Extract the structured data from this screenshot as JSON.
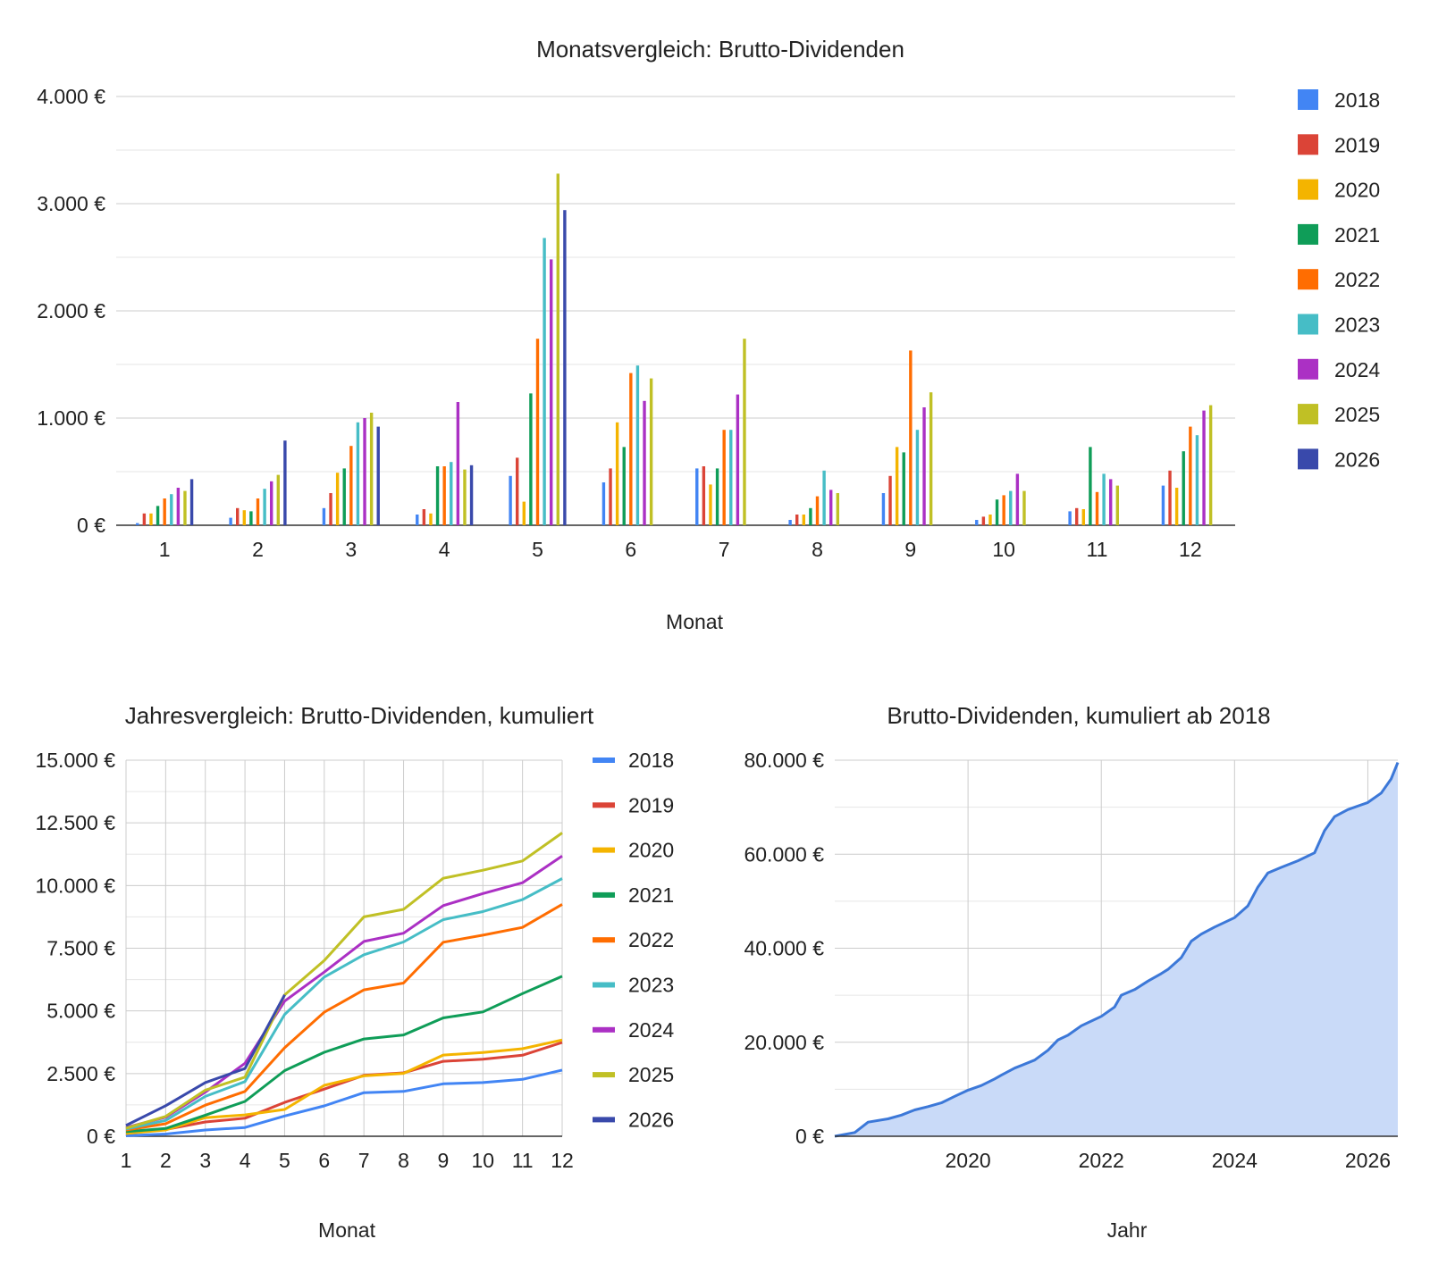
{
  "colors": {
    "2018": "#4285F4",
    "2019": "#DB4437",
    "2020": "#F4B400",
    "2021": "#0F9D58",
    "2022": "#FF6D01",
    "2023": "#46BDC6",
    "2024": "#AB30C4",
    "2025": "#C0C025",
    "2026": "#3949AB",
    "area_line": "#3C78D8",
    "area_fill": "#C9DAF8"
  },
  "chart_data": [
    {
      "type": "bar",
      "title": "Monatsvergleich: Brutto-Dividenden",
      "xlabel": "Monat",
      "ylabel": "",
      "ylim": [
        0,
        4000
      ],
      "y_ticks": [
        0,
        1000,
        2000,
        3000,
        4000
      ],
      "y_tick_labels": [
        "0 €",
        "1.000 €",
        "2.000 €",
        "3.000 €",
        "4.000 €"
      ],
      "categories": [
        "1",
        "2",
        "3",
        "4",
        "5",
        "6",
        "7",
        "8",
        "9",
        "10",
        "11",
        "12"
      ],
      "legend_position": "right",
      "grid": true,
      "series": [
        {
          "name": "2018",
          "values": [
            20,
            70,
            160,
            100,
            460,
            400,
            530,
            50,
            300,
            50,
            130,
            370
          ]
        },
        {
          "name": "2019",
          "values": [
            110,
            160,
            300,
            150,
            630,
            530,
            550,
            100,
            460,
            80,
            160,
            510
          ]
        },
        {
          "name": "2020",
          "values": [
            110,
            140,
            490,
            110,
            220,
            960,
            380,
            100,
            730,
            100,
            150,
            350
          ]
        },
        {
          "name": "2021",
          "values": [
            180,
            130,
            530,
            550,
            1230,
            730,
            530,
            160,
            680,
            240,
            730,
            690
          ]
        },
        {
          "name": "2022",
          "values": [
            250,
            250,
            740,
            550,
            1740,
            1420,
            890,
            270,
            1630,
            280,
            310,
            920
          ]
        },
        {
          "name": "2023",
          "values": [
            290,
            340,
            960,
            590,
            2680,
            1490,
            890,
            510,
            890,
            320,
            480,
            840
          ]
        },
        {
          "name": "2024",
          "values": [
            350,
            410,
            1000,
            1150,
            2480,
            1160,
            1220,
            330,
            1100,
            480,
            430,
            1070
          ]
        },
        {
          "name": "2025",
          "values": [
            320,
            470,
            1050,
            520,
            3280,
            1370,
            1740,
            300,
            1240,
            320,
            370,
            1120
          ]
        },
        {
          "name": "2026",
          "values": [
            430,
            790,
            920,
            560,
            2940,
            null,
            null,
            null,
            null,
            null,
            null,
            null
          ]
        }
      ]
    },
    {
      "type": "line",
      "title": "Jahresvergleich: Brutto-Dividenden, kumuliert",
      "xlabel": "Monat",
      "ylabel": "",
      "ylim": [
        0,
        15000
      ],
      "y_ticks": [
        0,
        2500,
        5000,
        7500,
        10000,
        12500,
        15000
      ],
      "y_tick_labels": [
        "0 €",
        "2.500 €",
        "5.000 €",
        "7.500 €",
        "10.000 €",
        "12.500 €",
        "15.000 €"
      ],
      "x": [
        1,
        2,
        3,
        4,
        5,
        6,
        7,
        8,
        9,
        10,
        11,
        12
      ],
      "x_tick_labels": [
        "1",
        "2",
        "3",
        "4",
        "5",
        "6",
        "7",
        "8",
        "9",
        "10",
        "11",
        "12"
      ],
      "legend_position": "right",
      "grid": true,
      "series": [
        {
          "name": "2018",
          "values": [
            20,
            90,
            250,
            350,
            810,
            1210,
            1740,
            1790,
            2090,
            2140,
            2270,
            2640
          ]
        },
        {
          "name": "2019",
          "values": [
            110,
            270,
            570,
            720,
            1350,
            1880,
            2430,
            2530,
            2990,
            3070,
            3230,
            3740
          ]
        },
        {
          "name": "2020",
          "values": [
            110,
            250,
            740,
            850,
            1070,
            2030,
            2410,
            2510,
            3240,
            3340,
            3490,
            3840
          ]
        },
        {
          "name": "2021",
          "values": [
            180,
            310,
            840,
            1390,
            2620,
            3350,
            3880,
            4040,
            4720,
            4960,
            5690,
            6380
          ]
        },
        {
          "name": "2022",
          "values": [
            250,
            500,
            1240,
            1790,
            3530,
            4950,
            5840,
            6110,
            7740,
            8020,
            8330,
            9250
          ]
        },
        {
          "name": "2023",
          "values": [
            290,
            630,
            1590,
            2180,
            4860,
            6350,
            7240,
            7750,
            8640,
            8960,
            9440,
            10280
          ]
        },
        {
          "name": "2024",
          "values": [
            350,
            760,
            1760,
            2910,
            5390,
            6550,
            7770,
            8100,
            9200,
            9680,
            10110,
            11180
          ]
        },
        {
          "name": "2025",
          "values": [
            320,
            790,
            1840,
            2360,
            5640,
            7010,
            8750,
            9050,
            10290,
            10610,
            10980,
            12100
          ]
        },
        {
          "name": "2026",
          "values": [
            430,
            1220,
            2140,
            2700,
            5640,
            null,
            null,
            null,
            null,
            null,
            null,
            null
          ]
        }
      ]
    },
    {
      "type": "area",
      "title": "Brutto-Dividenden, kumuliert ab 2018",
      "xlabel": "Jahr",
      "ylabel": "",
      "ylim": [
        0,
        80000
      ],
      "xlim": [
        2018.0,
        2026.45
      ],
      "y_ticks": [
        0,
        20000,
        40000,
        60000,
        80000
      ],
      "y_tick_labels": [
        "0 €",
        "20.000 €",
        "40.000 €",
        "60.000 €",
        "80.000 €"
      ],
      "x_ticks": [
        2020,
        2022,
        2024,
        2026
      ],
      "x_tick_labels": [
        "2020",
        "2022",
        "2024",
        "2026"
      ],
      "grid": true,
      "series": [
        {
          "x": [
            2018.0,
            2018.3,
            2018.5,
            2018.8,
            2019.0,
            2019.2,
            2019.4,
            2019.6,
            2019.8,
            2020.0,
            2020.2,
            2020.4,
            2020.5,
            2020.7,
            2021.0,
            2021.2,
            2021.35,
            2021.5,
            2021.7,
            2022.0,
            2022.2,
            2022.3,
            2022.5,
            2022.7,
            2022.9,
            2023.0,
            2023.2,
            2023.35,
            2023.5,
            2023.7,
            2024.0,
            2024.2,
            2024.35,
            2024.5,
            2024.7,
            2024.95,
            2025.2,
            2025.35,
            2025.5,
            2025.7,
            2026.0,
            2026.2,
            2026.35,
            2026.45
          ],
          "values": [
            0,
            800,
            3000,
            3700,
            4500,
            5600,
            6300,
            7100,
            8500,
            9800,
            10800,
            12200,
            13000,
            14500,
            16200,
            18300,
            20500,
            21500,
            23500,
            25500,
            27500,
            30000,
            31200,
            33000,
            34600,
            35500,
            38000,
            41500,
            43000,
            44500,
            46500,
            49000,
            53000,
            56000,
            57200,
            58600,
            60300,
            65000,
            68000,
            69500,
            71000,
            73000,
            76000,
            79500
          ]
        }
      ]
    }
  ]
}
